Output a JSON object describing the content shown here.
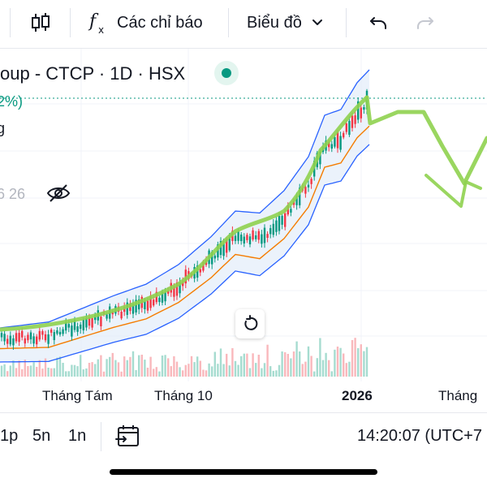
{
  "toolbar": {
    "indicators_label": "Các chỉ báo",
    "chart_type_label": "Biểu đồ"
  },
  "legend": {
    "title": "oup - CTCP · 1D · HSX",
    "percent": "2%)",
    "line2": "g",
    "line3": "6 26"
  },
  "xaxis": {
    "labels": [
      "Tháng Tám",
      "Tháng 10",
      "2026",
      "Tháng"
    ]
  },
  "bottom": {
    "ranges": [
      "1p",
      "5n",
      "1n"
    ],
    "time": "14:20:07 (UTC+7"
  },
  "colors": {
    "up": "#089981",
    "down": "#f23645",
    "band": "#2962ff",
    "ma": "#f57c00",
    "drawing": "#8fd14f"
  },
  "icons": {
    "candles": "candlestick-icon",
    "fx": "function-icon",
    "undo": "undo-icon",
    "redo": "redo-icon",
    "eye": "eye-off-icon",
    "reset": "reset-icon",
    "calendar": "calendar-range-icon"
  }
}
